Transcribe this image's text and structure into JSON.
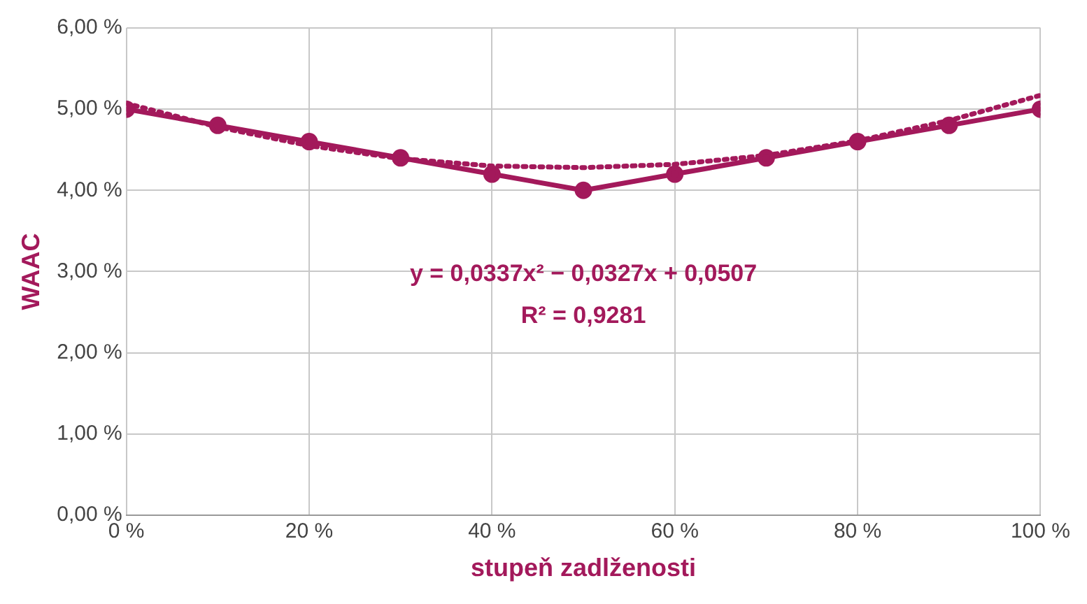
{
  "chart_data": {
    "type": "line",
    "xlabel": "stupeň zadlženosti",
    "ylabel": "WAAC",
    "x": [
      0,
      10,
      20,
      30,
      40,
      50,
      60,
      70,
      80,
      90,
      100
    ],
    "series": [
      {
        "color": "#a3195b",
        "values": [
          5.0,
          4.8,
          4.6,
          4.4,
          4.2,
          4.0,
          4.2,
          4.4,
          4.6,
          4.8,
          5.0
        ],
        "marker": "circle",
        "line_style": "solid"
      },
      {
        "type": "line",
        "color": "#a3195b",
        "x": [
          0,
          10,
          20,
          30,
          40,
          50,
          60,
          70,
          80,
          90,
          100
        ],
        "values": [
          5.07,
          4.78,
          4.55,
          4.39,
          4.3,
          4.28,
          4.32,
          4.43,
          4.61,
          4.86,
          5.17
        ],
        "marker": "none",
        "line_style": "dotted"
      }
    ],
    "xlim": [
      0,
      100
    ],
    "xticks": [
      {
        "value": 0,
        "label": "0 %"
      },
      {
        "value": 20,
        "label": "20 %"
      },
      {
        "value": 40,
        "label": "40 %"
      },
      {
        "value": 60,
        "label": "60 %"
      },
      {
        "value": 80,
        "label": "80 %"
      },
      {
        "value": 100,
        "label": "100 %"
      }
    ],
    "ylim": [
      0,
      6
    ],
    "yticks": [
      {
        "value": 0,
        "label": "0,00 %"
      },
      {
        "value": 1,
        "label": "1,00 %"
      },
      {
        "value": 2,
        "label": "2,00 %"
      },
      {
        "value": 3,
        "label": "3,00 %"
      },
      {
        "value": 4,
        "label": "4,00 %"
      },
      {
        "value": 5,
        "label": "5,00 %"
      },
      {
        "value": 6,
        "label": "6,00 %"
      }
    ],
    "grid": true,
    "legend": false,
    "annotations": [
      "y = 0,0337x² − 0,0327x + 0,0507",
      "R² = 0,9281"
    ]
  }
}
